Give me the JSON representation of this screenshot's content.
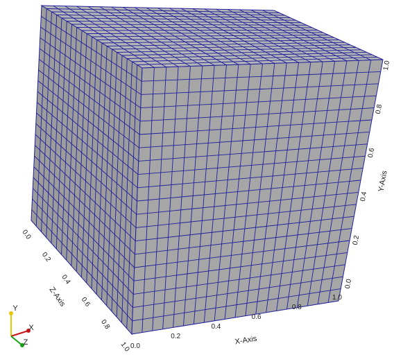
{
  "viewport": {
    "background": "#ffffff",
    "cube": {
      "face_color": "#a6a6a6",
      "top_color": "#b5b5b5",
      "side_color": "#9c9c9c",
      "mesh_color": "#1f1f9e",
      "grid_divisions": 20
    },
    "axes": {
      "x": {
        "label": "X-Axis",
        "ticks": [
          "0.0",
          "0.2",
          "0.4",
          "0.6",
          "0.8",
          "1.0"
        ]
      },
      "y": {
        "label": "Y-Axis",
        "ticks": [
          "0.0",
          "0.2",
          "0.4",
          "0.6",
          "0.8",
          "1.0"
        ]
      },
      "z": {
        "label": "Z-Axis",
        "ticks": [
          "0.0",
          "0.2",
          "0.4",
          "0.6",
          "0.8",
          "1.0"
        ]
      }
    },
    "orientation_widget": {
      "labels": [
        "Y",
        "X",
        "Z"
      ],
      "colors": {
        "y": "#e6c800",
        "x": "#c81414",
        "z": "#14a014"
      }
    }
  }
}
